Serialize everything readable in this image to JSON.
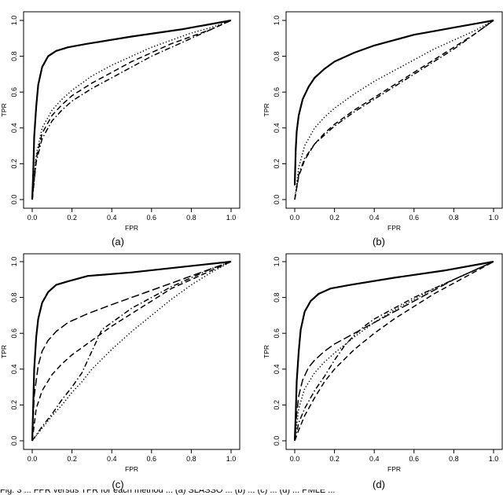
{
  "figure": {
    "caption": "Fig. 3 ... FPR versus TPR for each method ... (a) SLASSO ... (b) ... (c) ... (d) ... PMLE ..."
  },
  "chart_data": [
    {
      "type": "line",
      "panel_label": "(a)",
      "xlabel": "FPR",
      "ylabel": "TPR",
      "xlim": [
        0,
        1
      ],
      "ylim": [
        0,
        1
      ],
      "xticks": [
        "0.0",
        "0.2",
        "0.4",
        "0.6",
        "0.8",
        "1.0"
      ],
      "yticks": [
        "0.0",
        "0.2",
        "0.4",
        "0.6",
        "0.8",
        "1.0"
      ],
      "grid": false,
      "series": [
        {
          "style": "solid",
          "x": [
            0,
            0.005,
            0.01,
            0.02,
            0.03,
            0.05,
            0.08,
            0.12,
            0.18,
            0.28,
            0.5,
            0.75,
            1.0
          ],
          "y": [
            0,
            0.15,
            0.35,
            0.52,
            0.64,
            0.74,
            0.8,
            0.83,
            0.85,
            0.87,
            0.91,
            0.95,
            1.0
          ]
        },
        {
          "style": "dotted",
          "x": [
            0,
            0.02,
            0.05,
            0.1,
            0.15,
            0.2,
            0.3,
            0.4,
            0.5,
            0.6,
            0.7,
            0.8,
            0.9,
            1.0
          ],
          "y": [
            0,
            0.25,
            0.4,
            0.5,
            0.56,
            0.61,
            0.69,
            0.75,
            0.8,
            0.85,
            0.89,
            0.93,
            0.96,
            1.0
          ]
        },
        {
          "style": "dashed",
          "x": [
            0,
            0.02,
            0.05,
            0.1,
            0.15,
            0.2,
            0.3,
            0.4,
            0.5,
            0.6,
            0.7,
            0.8,
            0.9,
            1.0
          ],
          "y": [
            0,
            0.23,
            0.37,
            0.47,
            0.53,
            0.58,
            0.65,
            0.71,
            0.77,
            0.82,
            0.87,
            0.91,
            0.95,
            1.0
          ]
        },
        {
          "style": "dashdot",
          "x": [
            0,
            0.02,
            0.05,
            0.1,
            0.15,
            0.2,
            0.3,
            0.4,
            0.5,
            0.6,
            0.7,
            0.8,
            0.9,
            1.0
          ],
          "y": [
            0,
            0.21,
            0.34,
            0.44,
            0.5,
            0.55,
            0.62,
            0.68,
            0.74,
            0.8,
            0.85,
            0.9,
            0.95,
            1.0
          ]
        }
      ]
    },
    {
      "type": "line",
      "panel_label": "(b)",
      "xlabel": "FPR",
      "ylabel": "TPR",
      "xlim": [
        0,
        1
      ],
      "ylim": [
        0,
        1
      ],
      "xticks": [
        "0.0",
        "0.2",
        "0.4",
        "0.6",
        "0.8",
        "1.0"
      ],
      "yticks": [
        "0.0",
        "0.2",
        "0.4",
        "0.6",
        "0.8",
        "1.0"
      ],
      "grid": false,
      "series": [
        {
          "style": "solid",
          "x": [
            0,
            0.005,
            0.01,
            0.02,
            0.04,
            0.07,
            0.1,
            0.15,
            0.2,
            0.3,
            0.4,
            0.5,
            0.6,
            0.7,
            0.8,
            0.9,
            1.0
          ],
          "y": [
            0.08,
            0.28,
            0.38,
            0.47,
            0.56,
            0.63,
            0.68,
            0.73,
            0.77,
            0.82,
            0.86,
            0.89,
            0.92,
            0.94,
            0.96,
            0.98,
            1.0
          ]
        },
        {
          "style": "dotted",
          "x": [
            0,
            0.02,
            0.05,
            0.1,
            0.15,
            0.2,
            0.3,
            0.4,
            0.5,
            0.6,
            0.7,
            0.8,
            0.9,
            1.0
          ],
          "y": [
            0,
            0.18,
            0.3,
            0.4,
            0.46,
            0.51,
            0.59,
            0.66,
            0.72,
            0.78,
            0.84,
            0.89,
            0.94,
            1.0
          ]
        },
        {
          "style": "dashed",
          "x": [
            0,
            0.02,
            0.05,
            0.1,
            0.15,
            0.2,
            0.3,
            0.4,
            0.5,
            0.6,
            0.7,
            0.8,
            0.9,
            1.0
          ],
          "y": [
            0,
            0.13,
            0.22,
            0.31,
            0.37,
            0.42,
            0.5,
            0.57,
            0.64,
            0.71,
            0.78,
            0.85,
            0.92,
            1.0
          ]
        },
        {
          "style": "dashdot",
          "x": [
            0,
            0.02,
            0.05,
            0.1,
            0.15,
            0.2,
            0.3,
            0.4,
            0.5,
            0.6,
            0.7,
            0.8,
            0.9,
            1.0
          ],
          "y": [
            0,
            0.14,
            0.23,
            0.31,
            0.36,
            0.41,
            0.49,
            0.56,
            0.63,
            0.7,
            0.77,
            0.84,
            0.92,
            1.0
          ]
        }
      ]
    },
    {
      "type": "line",
      "panel_label": "(c)",
      "xlabel": "FPR",
      "ylabel": "TPR",
      "xlim": [
        0,
        1
      ],
      "ylim": [
        0,
        1
      ],
      "xticks": [
        "0.0",
        "0.2",
        "0.4",
        "0.6",
        "0.8",
        "1.0"
      ],
      "yticks": [
        "0.0",
        "0.2",
        "0.4",
        "0.6",
        "0.8",
        "1.0"
      ],
      "grid": false,
      "series": [
        {
          "style": "solid",
          "x": [
            0,
            0.005,
            0.01,
            0.02,
            0.03,
            0.05,
            0.08,
            0.12,
            0.18,
            0.28,
            0.5,
            0.75,
            1.0
          ],
          "y": [
            0,
            0.2,
            0.4,
            0.58,
            0.68,
            0.77,
            0.83,
            0.87,
            0.89,
            0.92,
            0.94,
            0.97,
            1.0
          ]
        },
        {
          "style": "longdash",
          "x": [
            0,
            0.01,
            0.03,
            0.05,
            0.08,
            0.12,
            0.18,
            0.28,
            0.4,
            0.5,
            0.6,
            0.7,
            0.8,
            0.9,
            1.0
          ],
          "y": [
            0,
            0.25,
            0.42,
            0.5,
            0.56,
            0.61,
            0.66,
            0.71,
            0.76,
            0.8,
            0.84,
            0.88,
            0.92,
            0.96,
            1.0
          ]
        },
        {
          "style": "dashed",
          "x": [
            0,
            0.02,
            0.05,
            0.1,
            0.15,
            0.2,
            0.3,
            0.4,
            0.5,
            0.6,
            0.7,
            0.8,
            0.9,
            1.0
          ],
          "y": [
            0,
            0.18,
            0.28,
            0.37,
            0.43,
            0.48,
            0.56,
            0.64,
            0.71,
            0.78,
            0.85,
            0.9,
            0.95,
            1.0
          ]
        },
        {
          "style": "dashdot",
          "x": [
            0,
            0.05,
            0.1,
            0.15,
            0.2,
            0.25,
            0.3,
            0.35,
            0.4,
            0.5,
            0.6,
            0.7,
            0.8,
            0.9,
            1.0
          ],
          "y": [
            0,
            0.08,
            0.15,
            0.23,
            0.3,
            0.38,
            0.5,
            0.62,
            0.66,
            0.74,
            0.8,
            0.86,
            0.91,
            0.96,
            1.0
          ]
        },
        {
          "style": "dotted",
          "x": [
            0,
            0.05,
            0.1,
            0.15,
            0.2,
            0.25,
            0.3,
            0.4,
            0.5,
            0.6,
            0.7,
            0.8,
            0.9,
            1.0
          ],
          "y": [
            0,
            0.07,
            0.14,
            0.2,
            0.27,
            0.33,
            0.4,
            0.51,
            0.61,
            0.7,
            0.79,
            0.87,
            0.94,
            1.0
          ]
        }
      ]
    },
    {
      "type": "line",
      "panel_label": "(d)",
      "xlabel": "FPR",
      "ylabel": "TPR",
      "xlim": [
        0,
        1
      ],
      "ylim": [
        0,
        1
      ],
      "xticks": [
        "0.0",
        "0.2",
        "0.4",
        "0.6",
        "0.8",
        "1.0"
      ],
      "yticks": [
        "0.0",
        "0.2",
        "0.4",
        "0.6",
        "0.8",
        "1.0"
      ],
      "grid": false,
      "series": [
        {
          "style": "solid",
          "x": [
            0,
            0.005,
            0.01,
            0.02,
            0.03,
            0.05,
            0.08,
            0.12,
            0.18,
            0.28,
            0.5,
            0.75,
            1.0
          ],
          "y": [
            0,
            0.15,
            0.33,
            0.5,
            0.62,
            0.72,
            0.78,
            0.82,
            0.85,
            0.87,
            0.91,
            0.95,
            1.0
          ]
        },
        {
          "style": "longdash",
          "x": [
            0,
            0.01,
            0.02,
            0.04,
            0.07,
            0.1,
            0.15,
            0.2,
            0.3,
            0.4,
            0.5,
            0.6,
            0.7,
            0.8,
            0.9,
            1.0
          ],
          "y": [
            0,
            0.15,
            0.25,
            0.34,
            0.41,
            0.45,
            0.5,
            0.54,
            0.6,
            0.66,
            0.72,
            0.78,
            0.84,
            0.9,
            0.95,
            1.0
          ]
        },
        {
          "style": "dotted",
          "x": [
            0,
            0.02,
            0.05,
            0.1,
            0.15,
            0.2,
            0.3,
            0.4,
            0.5,
            0.6,
            0.7,
            0.8,
            0.9,
            1.0
          ],
          "y": [
            0,
            0.18,
            0.29,
            0.38,
            0.44,
            0.49,
            0.58,
            0.66,
            0.73,
            0.79,
            0.85,
            0.9,
            0.95,
            1.0
          ]
        },
        {
          "style": "dashdot",
          "x": [
            0,
            0.02,
            0.05,
            0.1,
            0.15,
            0.2,
            0.25,
            0.3,
            0.35,
            0.4,
            0.5,
            0.6,
            0.7,
            0.8,
            0.9,
            1.0
          ],
          "y": [
            0,
            0.1,
            0.18,
            0.28,
            0.36,
            0.45,
            0.53,
            0.59,
            0.64,
            0.68,
            0.74,
            0.8,
            0.85,
            0.9,
            0.95,
            1.0
          ]
        },
        {
          "style": "dashed",
          "x": [
            0,
            0.02,
            0.05,
            0.1,
            0.15,
            0.2,
            0.3,
            0.4,
            0.5,
            0.6,
            0.7,
            0.8,
            0.9,
            1.0
          ],
          "y": [
            0,
            0.06,
            0.14,
            0.24,
            0.33,
            0.4,
            0.51,
            0.6,
            0.68,
            0.75,
            0.82,
            0.88,
            0.94,
            1.0
          ]
        }
      ]
    }
  ]
}
